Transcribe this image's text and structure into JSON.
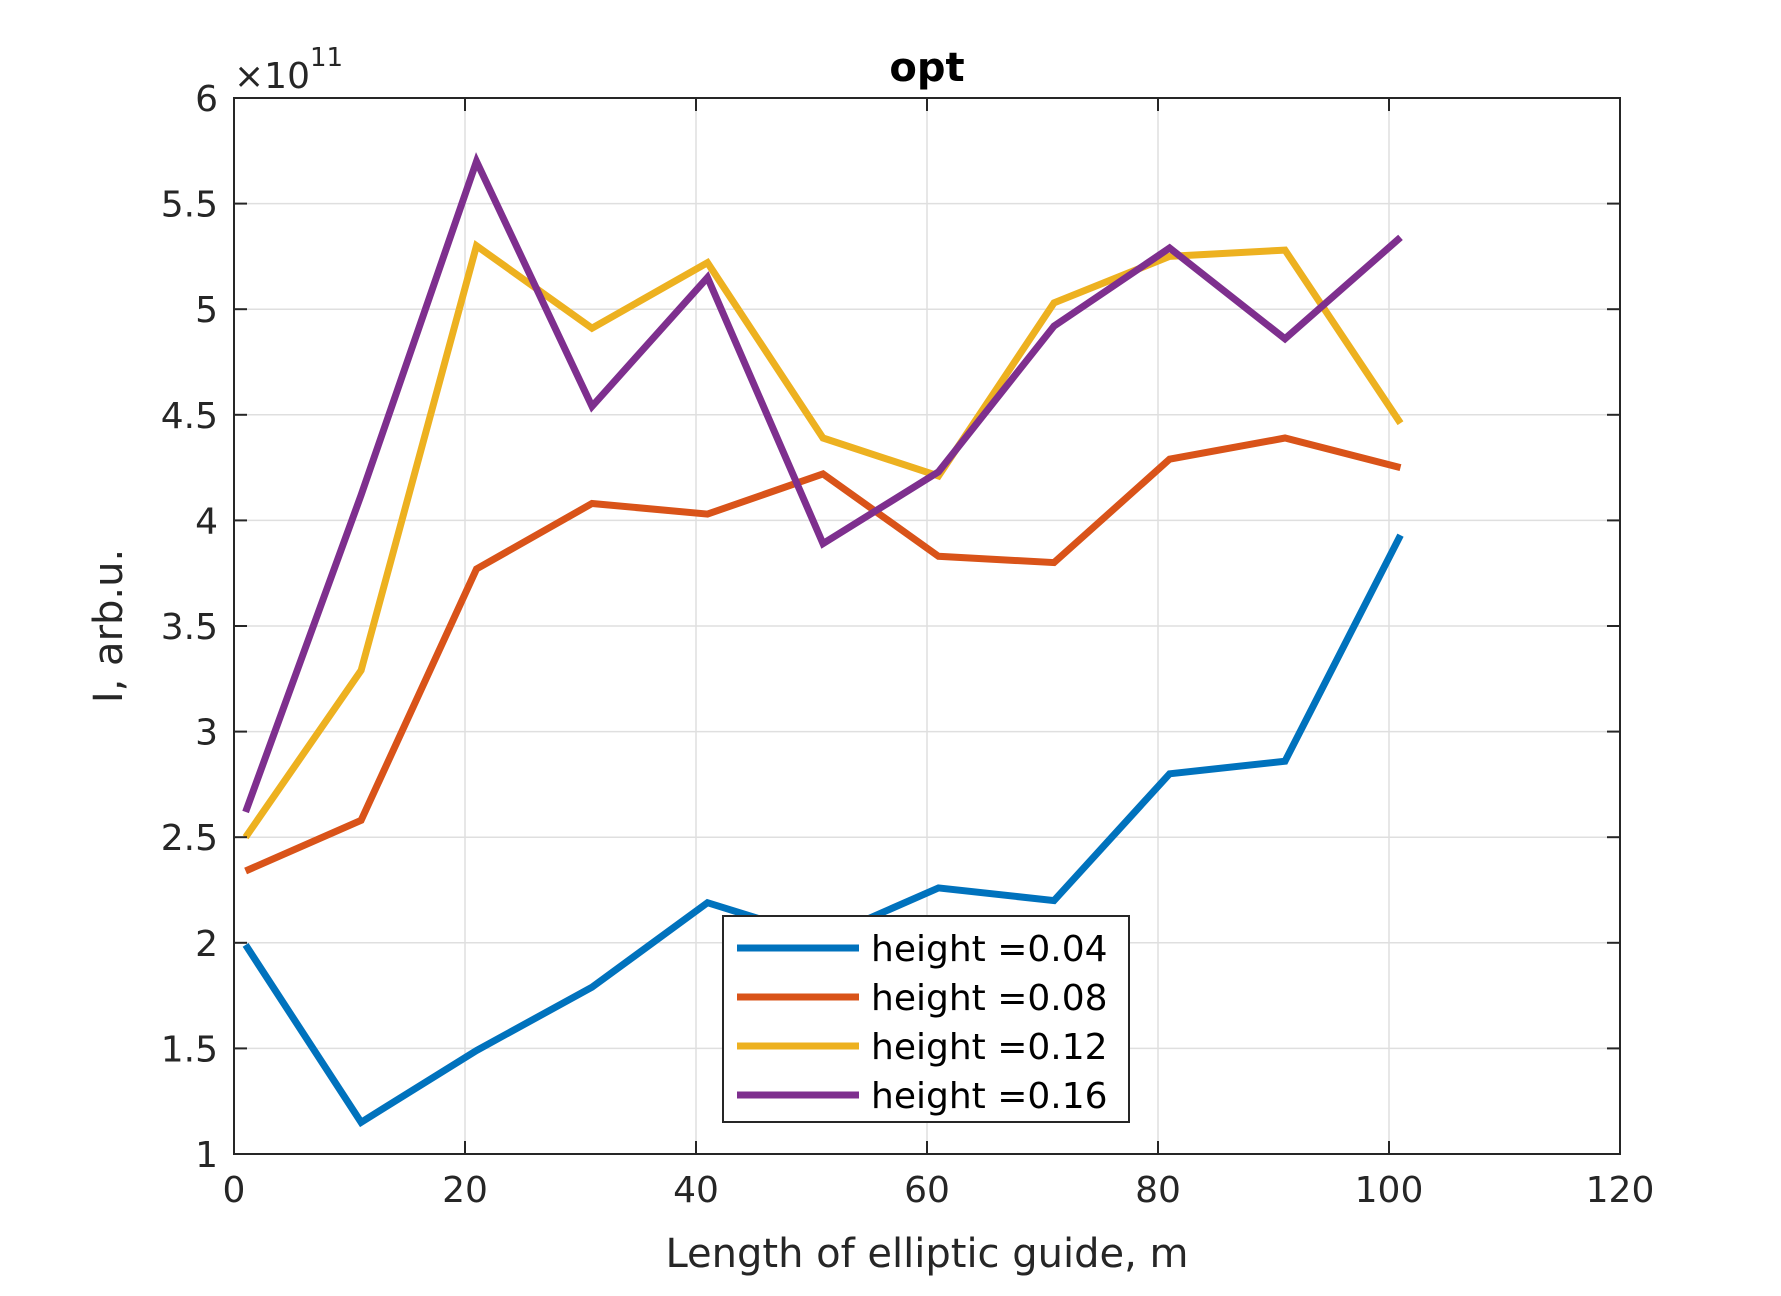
{
  "chart_data": {
    "type": "line",
    "title": "opt",
    "xlabel": "Length of elliptic guide, m",
    "ylabel": "I, arb.u.",
    "y_exponent_prefix": "×10",
    "y_exponent": "11",
    "xlim": [
      0,
      120
    ],
    "ylim": [
      1,
      6
    ],
    "y_scale_factor": 100000000000.0,
    "xticks": [
      0,
      20,
      40,
      60,
      80,
      100,
      120
    ],
    "xtick_labels": [
      "0",
      "20",
      "40",
      "60",
      "80",
      "100",
      "120"
    ],
    "yticks": [
      1,
      1.5,
      2,
      2.5,
      3,
      3.5,
      4,
      4.5,
      5,
      5.5,
      6
    ],
    "ytick_labels": [
      "1",
      "1.5",
      "2",
      "2.5",
      "3",
      "3.5",
      "4",
      "4.5",
      "5",
      "5.5",
      "6"
    ],
    "grid": true,
    "legend_position": "bottom-center",
    "x": [
      1,
      11,
      21,
      31,
      41,
      51,
      61,
      71,
      81,
      91,
      101
    ],
    "series": [
      {
        "name": "height =0.04",
        "color": "#0072BD",
        "values": [
          1.99,
          1.15,
          1.49,
          1.79,
          2.19,
          2.02,
          2.26,
          2.2,
          2.8,
          2.86,
          3.93
        ]
      },
      {
        "name": "height =0.08",
        "color": "#D95319",
        "values": [
          2.34,
          2.58,
          3.77,
          4.08,
          4.03,
          4.22,
          3.83,
          3.8,
          4.29,
          4.39,
          4.25
        ]
      },
      {
        "name": "height =0.12",
        "color": "#EDB120",
        "values": [
          2.5,
          3.29,
          5.3,
          4.91,
          5.22,
          4.39,
          4.21,
          5.03,
          5.25,
          5.28,
          4.46
        ]
      },
      {
        "name": "height =0.16",
        "color": "#7E2F8E",
        "values": [
          2.62,
          4.12,
          5.7,
          4.54,
          5.15,
          3.89,
          4.23,
          4.92,
          5.29,
          4.86,
          5.34
        ]
      }
    ]
  }
}
